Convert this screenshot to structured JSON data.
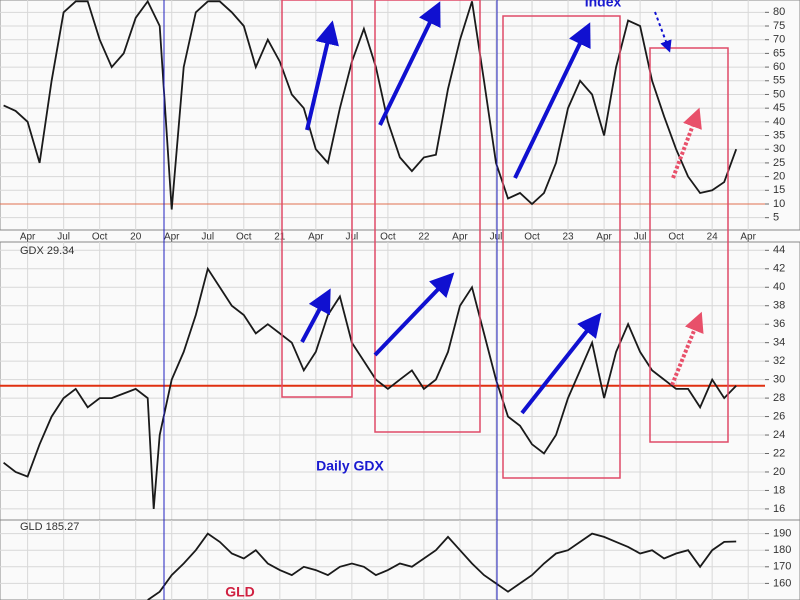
{
  "chart_data": [
    {
      "type": "line",
      "title": "Index",
      "xlim": [
        0.7,
        64.4
      ],
      "ylim": [
        0.5,
        84.5
      ],
      "yticks": [
        5,
        10,
        15,
        20,
        25,
        30,
        35,
        40,
        45,
        50,
        55,
        60,
        65,
        70,
        75,
        80
      ],
      "xticks": [
        {
          "value": 3,
          "label": "Apr"
        },
        {
          "value": 6,
          "label": "Jul"
        },
        {
          "value": 9,
          "label": "Oct"
        },
        {
          "value": 12,
          "label": "20"
        },
        {
          "value": 15,
          "label": "Apr"
        },
        {
          "value": 18,
          "label": "Jul"
        },
        {
          "value": 21,
          "label": "Oct"
        },
        {
          "value": 24,
          "label": "21"
        },
        {
          "value": 27,
          "label": "Apr"
        },
        {
          "value": 30,
          "label": "Jul"
        },
        {
          "value": 33,
          "label": "Oct"
        },
        {
          "value": 36,
          "label": "22"
        },
        {
          "value": 39,
          "label": "Apr"
        },
        {
          "value": 42,
          "label": "Jul"
        },
        {
          "value": 45,
          "label": "Oct"
        },
        {
          "value": 48,
          "label": "23"
        },
        {
          "value": 51,
          "label": "Apr"
        },
        {
          "value": 54,
          "label": "Jul"
        },
        {
          "value": 57,
          "label": "Oct"
        },
        {
          "value": 60,
          "label": "24"
        },
        {
          "value": 63,
          "label": "Apr"
        }
      ],
      "grid": true,
      "reference_line": 10,
      "x": [
        1,
        2,
        3,
        4,
        5,
        6,
        7,
        8,
        9,
        10,
        11,
        12,
        13,
        14,
        15,
        16,
        17,
        18,
        19,
        20,
        21,
        22,
        23,
        24,
        25,
        26,
        27,
        28,
        29,
        30,
        31,
        32,
        33,
        34,
        35,
        36,
        37,
        38,
        39,
        40,
        41,
        42,
        43,
        44,
        45,
        46,
        47,
        48,
        49,
        50,
        51,
        52,
        53,
        54,
        55,
        56,
        57,
        58,
        59,
        60,
        61,
        62
      ],
      "series": [
        {
          "color": "#1a1a1a",
          "values": [
            46,
            44,
            40,
            25,
            55,
            80,
            84,
            84,
            70,
            60,
            65,
            78,
            84,
            75,
            8,
            60,
            80,
            84,
            84,
            80,
            75,
            60,
            70,
            62,
            50,
            45,
            30,
            25,
            45,
            62,
            74,
            60,
            40,
            27,
            22,
            27,
            28,
            52,
            70,
            84,
            55,
            25,
            12,
            14,
            10,
            14,
            25,
            45,
            55,
            50,
            35,
            60,
            77,
            75,
            55,
            42,
            30,
            20,
            14,
            15,
            18,
            30
          ]
        }
      ]
    },
    {
      "type": "line",
      "title": "GDX 29.34",
      "annotation": "Daily GDX",
      "xlim": [
        0.7,
        64.4
      ],
      "ylim": [
        14.8,
        44.9
      ],
      "yticks": [
        16,
        18,
        20,
        22,
        24,
        26,
        28,
        30,
        32,
        34,
        36,
        38,
        40,
        42,
        44
      ],
      "grid": true,
      "reference_line": 29.34,
      "x": [
        1,
        2,
        3,
        4,
        5,
        6,
        7,
        8,
        9,
        10,
        11,
        12,
        13,
        13.5,
        14,
        15,
        16,
        17,
        18,
        19,
        20,
        21,
        22,
        23,
        24,
        25,
        26,
        27,
        28,
        29,
        30,
        31,
        32,
        33,
        34,
        35,
        36,
        37,
        38,
        39,
        40,
        41,
        42,
        43,
        44,
        45,
        46,
        47,
        48,
        49,
        50,
        51,
        52,
        53,
        54,
        55,
        56,
        57,
        58,
        59,
        60,
        61,
        62
      ],
      "series": [
        {
          "color": "#1a1a1a",
          "values": [
            21,
            20,
            19.5,
            23,
            26,
            28,
            29,
            27,
            28,
            28,
            28.5,
            29,
            28,
            16,
            24,
            30,
            33,
            37,
            42,
            40,
            38,
            37,
            35,
            36,
            35,
            34,
            31,
            33,
            37,
            39,
            34,
            32,
            30,
            29,
            30,
            31,
            29,
            30,
            33,
            38,
            40,
            35,
            30,
            26,
            25,
            23,
            22,
            24,
            28,
            31,
            34,
            28,
            33,
            36,
            33,
            31,
            30,
            29,
            29,
            27,
            30,
            28,
            29.34
          ]
        }
      ]
    },
    {
      "type": "line",
      "title": "GLD 185.27",
      "annotation": "GLD",
      "xlim": [
        0.7,
        64.4
      ],
      "ylim": [
        150,
        198.2
      ],
      "yticks": [
        160,
        170,
        180,
        190
      ],
      "grid": true,
      "x": [
        13,
        14,
        15,
        16,
        17,
        18,
        19,
        20,
        21,
        22,
        23,
        24,
        25,
        26,
        27,
        28,
        29,
        30,
        31,
        32,
        33,
        34,
        35,
        36,
        37,
        38,
        39,
        40,
        41,
        42,
        43,
        44,
        45,
        46,
        47,
        48,
        49,
        50,
        51,
        52,
        53,
        54,
        55,
        56,
        57,
        58,
        59,
        60,
        61,
        62
      ],
      "series": [
        {
          "color": "#1a1a1a",
          "values": [
            150,
            155,
            165,
            172,
            180,
            190,
            185,
            178,
            175,
            180,
            172,
            168,
            165,
            170,
            168,
            165,
            170,
            172,
            170,
            165,
            168,
            172,
            170,
            175,
            180,
            188,
            180,
            172,
            165,
            160,
            155,
            160,
            165,
            172,
            178,
            180,
            185,
            190,
            188,
            185,
            182,
            178,
            180,
            175,
            178,
            180,
            170,
            180,
            185,
            185.27
          ]
        }
      ]
    }
  ]
}
